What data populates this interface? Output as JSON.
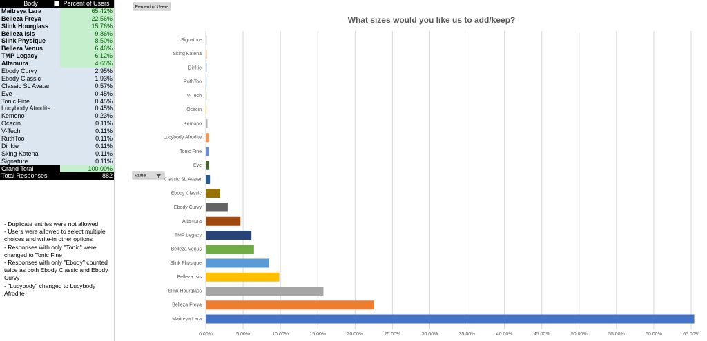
{
  "table": {
    "header": [
      "Body",
      "Percent of Users"
    ],
    "rows": [
      [
        "Maitreya Lara",
        "65.42%"
      ],
      [
        "Belleza Freya",
        "22.56%"
      ],
      [
        "Slink Hourglass",
        "15.76%"
      ],
      [
        "Belleza Isis",
        "9.86%"
      ],
      [
        "Slink Physique",
        "8.50%"
      ],
      [
        "Belleza Venus",
        "6.46%"
      ],
      [
        "TMP Legacy",
        "6.12%"
      ],
      [
        "Altamura",
        "4.65%"
      ],
      [
        "Ebody Curvy",
        "2.95%"
      ],
      [
        "Ebody Classic",
        "1.93%"
      ],
      [
        "Classic SL Avatar",
        "0.57%"
      ],
      [
        "Eve",
        "0.45%"
      ],
      [
        "Tonic Fine",
        "0.45%"
      ],
      [
        "Lucybody Afrodite",
        "0.45%"
      ],
      [
        "Kemono",
        "0.23%"
      ],
      [
        "Ocacin",
        "0.11%"
      ],
      [
        "V-Tech",
        "0.11%"
      ],
      [
        "RuthToo",
        "0.11%"
      ],
      [
        "Dinkie",
        "0.11%"
      ],
      [
        "Sking Katena",
        "0.11%"
      ],
      [
        "Signature",
        "0.11%"
      ]
    ],
    "grand_total": [
      "Grand Total",
      "100.00%"
    ],
    "total_responses": [
      "Total Responses",
      "882"
    ]
  },
  "notes": [
    "- Duplicate entries were not allowed",
    "- Users were allowed to select multiple choices and write-in other options",
    "- Responses with only \"Tonic\" were changed to Tonic Fine",
    "- Responses with only \"Ebody\" counted twice as both Ebody Classic and Ebody Curvy",
    "- \"Lucybody\" changed to Lucybody Afrodite"
  ],
  "buttons": {
    "field": "Percent of Users",
    "value": "Value"
  },
  "chart_data": {
    "type": "bar",
    "orientation": "horizontal",
    "title": "What sizes would you like us to add/keep?",
    "categories": [
      "Maitreya Lara",
      "Belleza Freya",
      "Slink Hourglass",
      "Belleza Isis",
      "Slink Physique",
      "Belleza Venus",
      "TMP Legacy",
      "Altamura",
      "Ebody Curvy",
      "Ebody Classic",
      "Classic SL Avatar",
      "Eve",
      "Tonic Fine",
      "Lucybody Afrodite",
      "Kemono",
      "Ocacin",
      "V-Tech",
      "RuthToo",
      "Dinkie",
      "Sking Katena",
      "Signature"
    ],
    "values": [
      65.42,
      22.56,
      15.76,
      9.86,
      8.5,
      6.46,
      6.12,
      4.65,
      2.95,
      1.93,
      0.57,
      0.45,
      0.45,
      0.45,
      0.23,
      0.11,
      0.11,
      0.11,
      0.11,
      0.11,
      0.11
    ],
    "colors": [
      "#4472c4",
      "#ed7d31",
      "#a5a5a5",
      "#ffc000",
      "#5b9bd5",
      "#70ad47",
      "#264478",
      "#9e480e",
      "#636363",
      "#997300",
      "#255e91",
      "#43682b",
      "#698ed0",
      "#f1975a",
      "#b7b7b7",
      "#ffcd33",
      "#8cc168",
      "#7cafdd",
      "#335aa1",
      "#d26012",
      "#848484"
    ],
    "xlim": [
      0,
      65
    ],
    "xticks": [
      {
        "value": 0,
        "label": "0.00%"
      },
      {
        "value": 5,
        "label": "5.00%"
      },
      {
        "value": 10,
        "label": "10.00%"
      },
      {
        "value": 15,
        "label": "15.00%"
      },
      {
        "value": 20,
        "label": "20.00%"
      },
      {
        "value": 25,
        "label": "25.00%"
      },
      {
        "value": 30,
        "label": "30.00%"
      },
      {
        "value": 35,
        "label": "35.00%"
      },
      {
        "value": 40,
        "label": "40.00%"
      },
      {
        "value": 45,
        "label": "45.00%"
      },
      {
        "value": 50,
        "label": "50.00%"
      },
      {
        "value": 55,
        "label": "55.00%"
      },
      {
        "value": 60,
        "label": "60.00%"
      },
      {
        "value": 65,
        "label": "65.00%"
      }
    ],
    "grid": true
  }
}
